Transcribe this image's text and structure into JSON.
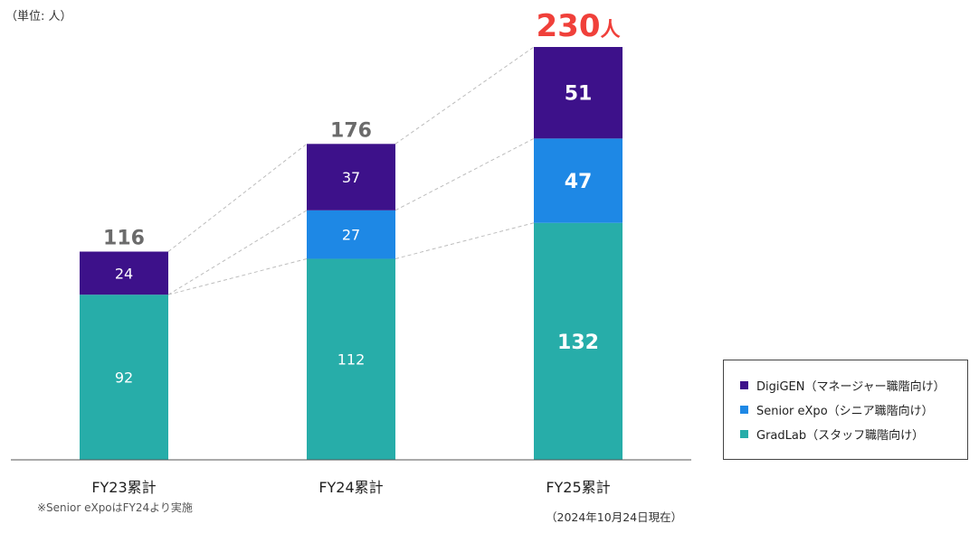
{
  "chart_data": {
    "type": "bar",
    "stacked": true,
    "unit_label": "（単位: 人）",
    "categories": [
      "FY23累計",
      "FY24累計",
      "FY25累計"
    ],
    "series": [
      {
        "name": "GradLab（スタッフ職階向け）",
        "color": "#27ADA9",
        "values": [
          92,
          112,
          132
        ]
      },
      {
        "name": "Senior eXpo（シニア職階向け）",
        "color": "#1E88E5",
        "values": [
          null,
          27,
          47
        ]
      },
      {
        "name": "DigiGEN（マネージャー職階向け）",
        "color": "#3D118A",
        "values": [
          24,
          37,
          51
        ]
      }
    ],
    "totals": [
      "116",
      "176",
      "230"
    ],
    "highlight_total_suffix": "人",
    "highlight_color": "#F0403A",
    "total_color": "#6B6B6B",
    "ylim": [
      0,
      230
    ],
    "notes": {
      "senior_expo": "※Senior eXpoはFY24より実施",
      "as_of": "（2024年10月24日現在）"
    },
    "legend_position": "right"
  }
}
